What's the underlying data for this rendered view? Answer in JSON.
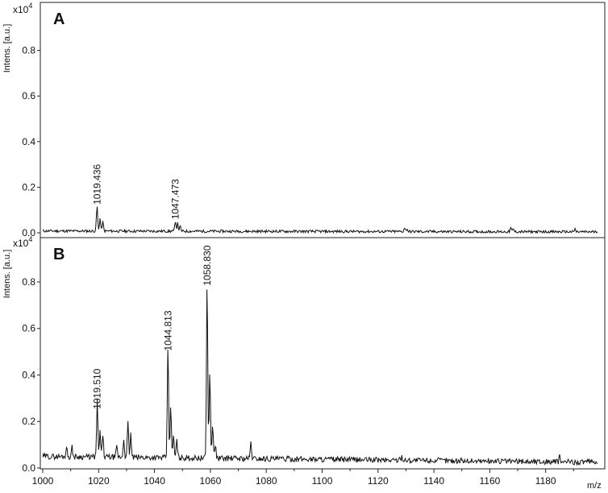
{
  "chart_data": [
    {
      "type": "line",
      "panel_label": "A",
      "ylabel": "Intens. [a.u.]",
      "y_multiplier": "x10",
      "y_exponent": "4",
      "ylim": [
        0,
        1.0
      ],
      "y_ticks": [
        "0.0",
        "0.2",
        "0.4",
        "0.6",
        "0.8"
      ],
      "xlim": [
        1000,
        1200
      ],
      "baseline": 0.008,
      "noise": 0.006,
      "peaks": [
        {
          "x": 1019.436,
          "y": 0.11,
          "label": "1019.436"
        },
        {
          "x": 1020.5,
          "y": 0.055
        },
        {
          "x": 1021.5,
          "y": 0.04
        },
        {
          "x": 1047.473,
          "y": 0.045,
          "label": "1047.473"
        },
        {
          "x": 1048.3,
          "y": 0.035
        },
        {
          "x": 1049.2,
          "y": 0.02
        },
        {
          "x": 1129.5,
          "y": 0.018
        },
        {
          "x": 1130.4,
          "y": 0.012
        },
        {
          "x": 1167.5,
          "y": 0.016
        },
        {
          "x": 1168.4,
          "y": 0.012
        },
        {
          "x": 1190.5,
          "y": 0.012
        }
      ]
    },
    {
      "type": "line",
      "panel_label": "B",
      "ylabel": "Intens. [a.u.]",
      "y_multiplier": "x10",
      "y_exponent": "4",
      "ylim": [
        0,
        0.98
      ],
      "y_ticks": [
        "0.0",
        "0.2",
        "0.4",
        "0.6",
        "0.8"
      ],
      "xlim": [
        1000,
        1200
      ],
      "x_ticks": [
        1000,
        1020,
        1040,
        1060,
        1080,
        1100,
        1120,
        1140,
        1160,
        1180
      ],
      "xlabel": "m/z",
      "baseline": 0.05,
      "noise": 0.012,
      "peaks": [
        {
          "x": 1008.5,
          "y": 0.045
        },
        {
          "x": 1010.5,
          "y": 0.04
        },
        {
          "x": 1019.51,
          "y": 0.24,
          "label": "1019.510"
        },
        {
          "x": 1020.5,
          "y": 0.11
        },
        {
          "x": 1021.5,
          "y": 0.1
        },
        {
          "x": 1026.5,
          "y": 0.045
        },
        {
          "x": 1029.0,
          "y": 0.08
        },
        {
          "x": 1030.5,
          "y": 0.15
        },
        {
          "x": 1031.5,
          "y": 0.1
        },
        {
          "x": 1044.813,
          "y": 0.49,
          "label": "1044.813"
        },
        {
          "x": 1045.8,
          "y": 0.23
        },
        {
          "x": 1046.8,
          "y": 0.1
        },
        {
          "x": 1048.0,
          "y": 0.08
        },
        {
          "x": 1058.83,
          "y": 0.77,
          "label": "1058.830"
        },
        {
          "x": 1059.8,
          "y": 0.38
        },
        {
          "x": 1060.8,
          "y": 0.15
        },
        {
          "x": 1061.8,
          "y": 0.06
        },
        {
          "x": 1074.5,
          "y": 0.07
        },
        {
          "x": 1128.5,
          "y": 0.02
        },
        {
          "x": 1185.0,
          "y": 0.02
        }
      ]
    }
  ]
}
